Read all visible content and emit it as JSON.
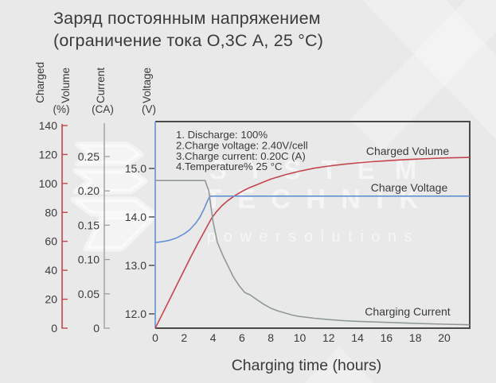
{
  "title": {
    "line1": "Заряд постоянным напряжением",
    "line2": "(ограничение тока О,3С А, 25 °С)"
  },
  "watermark": {
    "row1": "S Y S T E M",
    "row2": "T E C H N I K",
    "row3": "p o w e r   s o l u t i o n s"
  },
  "axis_headers": {
    "charged": "Charged",
    "volume": "Volume",
    "volume_unit": "(%)",
    "current": "Current",
    "current_unit": "(CA)",
    "voltage": "Voltage",
    "voltage_unit": "(V)"
  },
  "colors": {
    "background": "#e9e9e9",
    "text": "#3a3a3a",
    "volume_series": "#c4454e",
    "voltage_series": "#6191d3",
    "current_series": "#909898",
    "current_axis": "#9aa0a0",
    "plot_border": "#4a4a4a",
    "watermark": "#ffffff"
  },
  "chart_data": {
    "type": "line",
    "title": "Заряд постоянным напряжением (ограничение тока О,3С А, 25 °С)",
    "xlabel": "Charging time (hours)",
    "xlim": [
      0,
      21.76
    ],
    "x_ticks": [
      0,
      2,
      4,
      6,
      8,
      10,
      12,
      14,
      16,
      18,
      20
    ],
    "x_tick_labels": [
      "0",
      "2",
      "4",
      "6",
      "8",
      "10",
      "12",
      "14",
      "16",
      "18",
      "20"
    ],
    "grid": false,
    "axes": {
      "volume": {
        "label": "Charged Volume (%)",
        "side": "outer-left",
        "ticks": [
          0,
          20,
          40,
          60,
          80,
          100,
          120,
          140
        ],
        "tick_labels": [
          "0",
          "20",
          "40",
          "60",
          "80",
          "100",
          "120",
          "140"
        ],
        "range": [
          0,
          140
        ]
      },
      "current": {
        "label": "Current (CA)",
        "side": "mid-left",
        "ticks": [
          0,
          0.05,
          0.1,
          0.15,
          0.2,
          0.25
        ],
        "tick_labels": [
          "0",
          "0.05",
          "0.10",
          "0.15",
          "0.20",
          "0.25"
        ],
        "range": [
          0,
          0.3
        ]
      },
      "voltage": {
        "label": "Voltage (V)",
        "side": "plot-left",
        "ticks": [
          12.0,
          13.0,
          14.0,
          15.0
        ],
        "tick_labels": [
          "12.0",
          "13.0",
          "14.0",
          "15.0"
        ],
        "range": [
          11.7,
          16.0
        ]
      }
    },
    "annotations": [
      "1. Discharge: 100%",
      "2.Charge voltage: 2.40V/cell",
      "3.Charge current: 0.20C (A)",
      "4.Temperature% 25 °C"
    ],
    "series": [
      {
        "name": "Charged Volume",
        "axis": "volume",
        "color": "#c4454e",
        "points": [
          [
            0,
            0
          ],
          [
            0.5,
            10
          ],
          [
            1,
            20
          ],
          [
            1.5,
            30
          ],
          [
            2,
            40
          ],
          [
            2.5,
            50
          ],
          [
            3,
            59.5
          ],
          [
            3.3,
            65
          ],
          [
            3.6,
            70.5
          ],
          [
            3.9,
            76
          ],
          [
            4.2,
            80
          ],
          [
            4.6,
            84.5
          ],
          [
            5,
            88
          ],
          [
            5.5,
            91.5
          ],
          [
            6,
            94.5
          ],
          [
            6.5,
            97
          ],
          [
            7,
            99
          ],
          [
            7.5,
            101
          ],
          [
            8,
            103
          ],
          [
            9,
            106
          ],
          [
            10,
            108.5
          ],
          [
            11,
            110.5
          ],
          [
            12,
            112
          ],
          [
            13,
            113.2
          ],
          [
            14,
            114.2
          ],
          [
            15,
            115
          ],
          [
            16,
            115.7
          ],
          [
            17,
            116.3
          ],
          [
            18,
            116.8
          ],
          [
            19,
            117.2
          ],
          [
            20,
            117.6
          ],
          [
            21.76,
            118
          ]
        ]
      },
      {
        "name": "Charge Voltage",
        "axis": "voltage",
        "color": "#6191d3",
        "points": [
          [
            0,
            13.47
          ],
          [
            0.5,
            13.49
          ],
          [
            1,
            13.52
          ],
          [
            1.5,
            13.57
          ],
          [
            2,
            13.65
          ],
          [
            2.4,
            13.74
          ],
          [
            2.8,
            13.87
          ],
          [
            3.1,
            14.0
          ],
          [
            3.4,
            14.18
          ],
          [
            3.6,
            14.32
          ],
          [
            3.75,
            14.41
          ],
          [
            3.85,
            14.43
          ],
          [
            21.76,
            14.43
          ]
        ]
      },
      {
        "name": "Charging Current",
        "axis": "current",
        "color": "#909898",
        "points": [
          [
            0,
            0.215
          ],
          [
            3.45,
            0.215
          ],
          [
            3.7,
            0.2
          ],
          [
            4,
            0.155
          ],
          [
            4.3,
            0.125
          ],
          [
            4.7,
            0.105
          ],
          [
            5,
            0.092
          ],
          [
            5.4,
            0.075
          ],
          [
            5.8,
            0.062
          ],
          [
            6.2,
            0.052
          ],
          [
            6.6,
            0.048
          ],
          [
            7,
            0.042
          ],
          [
            7.5,
            0.035
          ],
          [
            8,
            0.029
          ],
          [
            8.5,
            0.025
          ],
          [
            9,
            0.022
          ],
          [
            9.5,
            0.019
          ],
          [
            10,
            0.017
          ],
          [
            11,
            0.0145
          ],
          [
            12,
            0.0125
          ],
          [
            13,
            0.011
          ],
          [
            14,
            0.01
          ],
          [
            15,
            0.0092
          ],
          [
            16,
            0.0085
          ],
          [
            17,
            0.0078
          ],
          [
            18,
            0.007
          ],
          [
            19,
            0.0064
          ],
          [
            20,
            0.0058
          ],
          [
            21.76,
            0.005
          ]
        ]
      }
    ]
  }
}
